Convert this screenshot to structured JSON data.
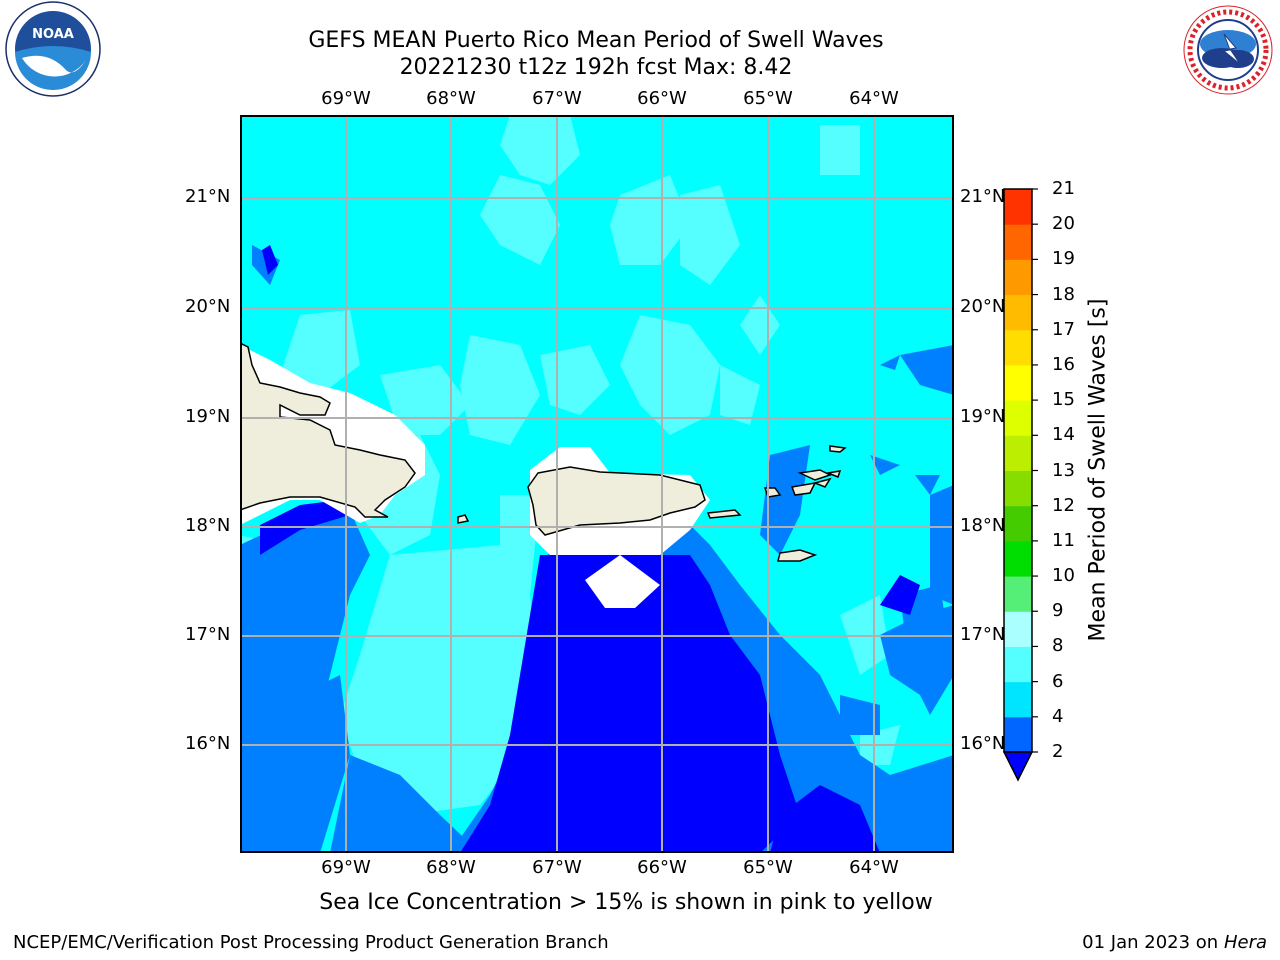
{
  "title": {
    "line1": "GEFS MEAN Puerto Rico Mean Period of Swell Waves",
    "line2": "20221230 t12z 192h fcst   Max: 8.42"
  },
  "logos": {
    "left": {
      "icon": "noaa-logo-icon",
      "text": "NOAA",
      "ring_text": "NATIONAL OCEANIC AND ATMOSPHERIC ADMINISTRATION · U.S. DEPARTMENT OF COMMERCE"
    },
    "right": {
      "icon": "nws-logo-icon",
      "ring_text": "NATIONAL WEATHER SERVICE"
    }
  },
  "map": {
    "lon_labels": [
      "69°W",
      "68°W",
      "67°W",
      "66°W",
      "65°W",
      "64°W"
    ],
    "lat_labels": [
      "21°N",
      "20°N",
      "19°N",
      "18°N",
      "17°N",
      "16°N"
    ],
    "land_color": "#efeedc",
    "grid_color": "#b0b0b0"
  },
  "colorbar": {
    "title": "Mean Period of Swell Waves [s]",
    "ticks": [
      "2",
      "4",
      "6",
      "8",
      "9",
      "10",
      "11",
      "12",
      "13",
      "14",
      "15",
      "16",
      "17",
      "18",
      "19",
      "20",
      "21"
    ],
    "colors": [
      "#0066ff",
      "#00e5ff",
      "#55ffff",
      "#aaffff",
      "#55ee77",
      "#00dd00",
      "#44cc00",
      "#88dd00",
      "#bbee00",
      "#ddff00",
      "#ffff00",
      "#ffdd00",
      "#ffbb00",
      "#ff9900",
      "#ff6600",
      "#ff3300",
      "#ff0000"
    ],
    "under_color": "#0000ff"
  },
  "note": "Sea Ice Concentration > 15% is shown in pink to yellow",
  "footer": {
    "left": "NCEP/EMC/Verification Post Processing Product Generation Branch",
    "date": "01 Jan 2023 on",
    "host": "Hera"
  }
}
